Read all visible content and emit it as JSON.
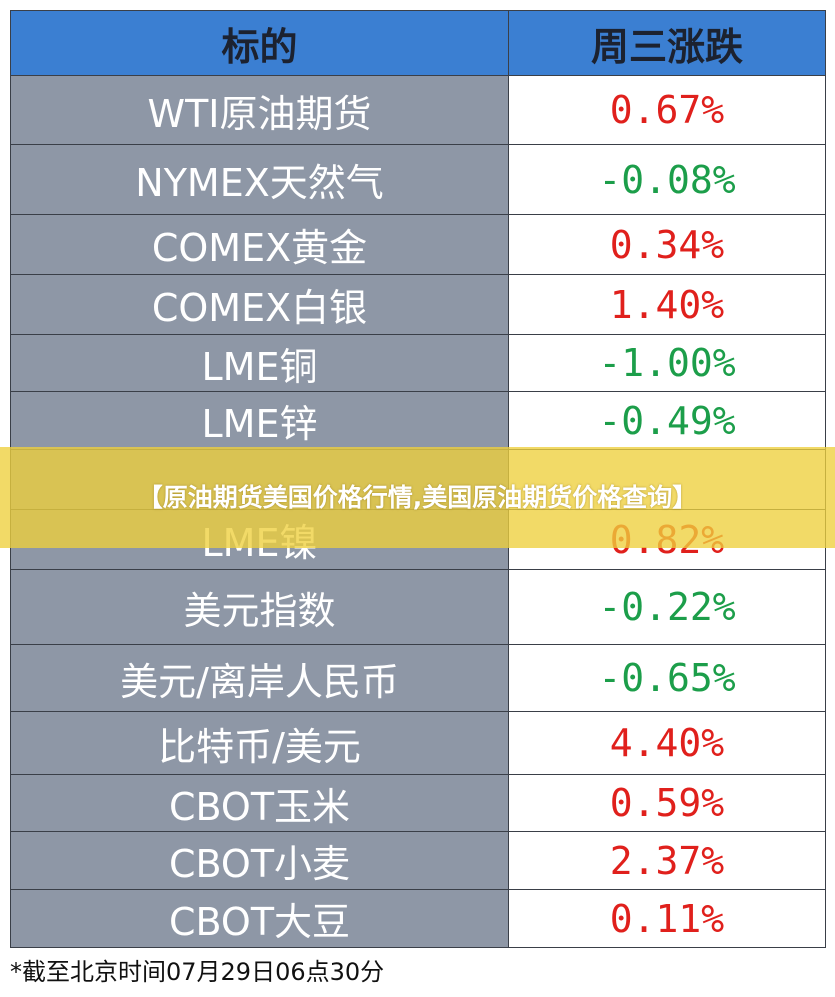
{
  "table": {
    "header": [
      "标的",
      "周三涨跌"
    ],
    "rows": [
      {
        "name": "WTI原油期货",
        "change": "0.67%",
        "color": "#e0201c"
      },
      {
        "name": "NYMEX天然气",
        "change": "-0.08%",
        "color": "#1c9e4a"
      },
      {
        "name": "COMEX黄金",
        "change": "0.34%",
        "color": "#e0201c"
      },
      {
        "name": "COMEX白银",
        "change": "1.40%",
        "color": "#e0201c"
      },
      {
        "name": "LME铜",
        "change": "-1.00%",
        "color": "#1c9e4a"
      },
      {
        "name": "LME锌",
        "change": "-0.49%",
        "color": "#1c9e4a"
      },
      {},
      {
        "name": "LME镍",
        "change": "0.82%",
        "color": "#e0201c"
      },
      {
        "name": "美元指数",
        "change": "-0.22%",
        "color": "#1c9e4a"
      },
      {
        "name": "美元/离岸人民币",
        "change": "-0.65%",
        "color": "#1c9e4a"
      },
      {
        "name": "比特币/美元",
        "change": "4.40%",
        "color": "#e0201c"
      },
      {
        "name": "CBOT玉米",
        "change": "0.59%",
        "color": "#e0201c"
      },
      {
        "name": "CBOT小麦",
        "change": "2.37%",
        "color": "#e0201c"
      },
      {
        "name": "CBOT大豆",
        "change": "0.11%",
        "color": "#e0201c"
      }
    ]
  },
  "footnote": "*截至北京时间07月29日06点30分",
  "banner": "【原油期货美国价格行情,美国原油期货价格查询】"
}
